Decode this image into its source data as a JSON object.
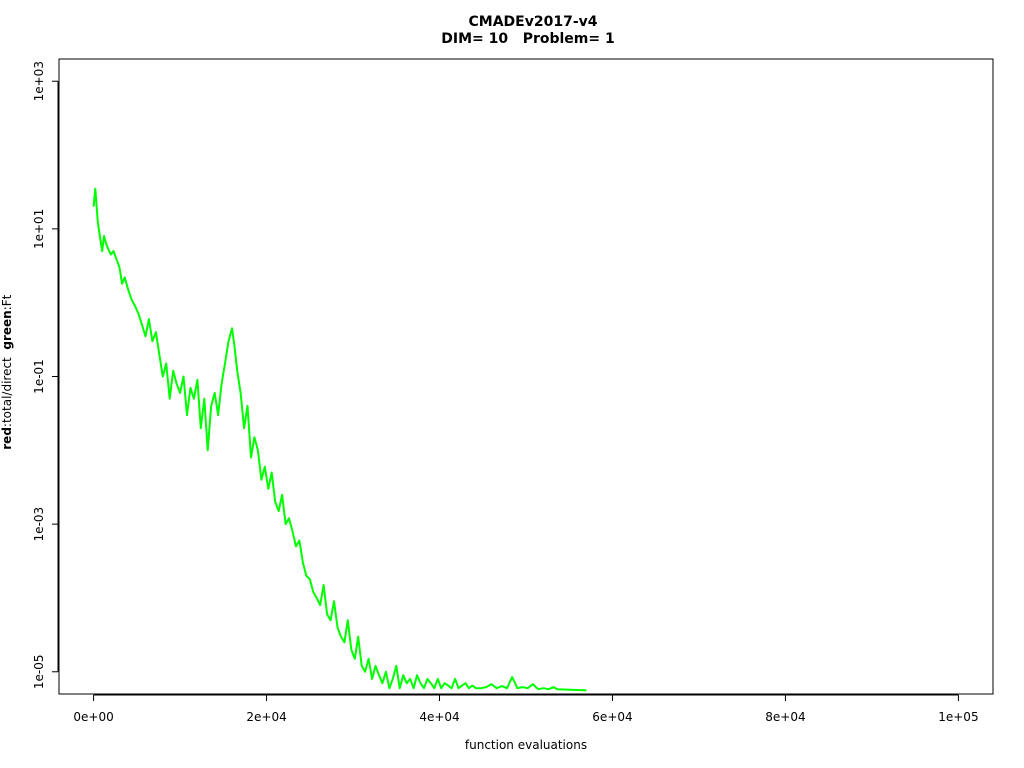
{
  "chart_data": {
    "type": "line",
    "title": "CMADEv2017-v4",
    "subtitle": "DIM= 10   Problem= 1",
    "xlabel": "function evaluations",
    "ylabel_parts": {
      "red_word": "red",
      "red_desc": ":total/direct  ",
      "green_word": "green",
      "green_desc": ":Ft"
    },
    "y_scale": "log",
    "xlim": [
      -4000,
      104000
    ],
    "ylim": [
      5e-06,
      2000.0
    ],
    "x_ticks": [
      {
        "value": 0,
        "label": "0e+00"
      },
      {
        "value": 20000,
        "label": "2e+04"
      },
      {
        "value": 40000,
        "label": "4e+04"
      },
      {
        "value": 60000,
        "label": "6e+04"
      },
      {
        "value": 80000,
        "label": "8e+04"
      },
      {
        "value": 100000,
        "label": "1e+05"
      }
    ],
    "y_ticks": [
      {
        "value": 1000,
        "label": "1e+03"
      },
      {
        "value": 10,
        "label": "1e+01"
      },
      {
        "value": 0.1,
        "label": "1e-01"
      },
      {
        "value": 0.001,
        "label": "1e-03"
      },
      {
        "value": 1e-05,
        "label": "1e-05"
      }
    ],
    "grid": false,
    "legend": "none",
    "series": [
      {
        "color": "#00ff00",
        "x": [
          0,
          200,
          500,
          800,
          1000,
          1200,
          1500,
          1800,
          2000,
          2300,
          2600,
          3000,
          3300,
          3600,
          4000,
          4400,
          4800,
          5200,
          5600,
          6000,
          6400,
          6800,
          7200,
          7600,
          8000,
          8400,
          8800,
          9200,
          9600,
          10000,
          10400,
          10800,
          11200,
          11600,
          12000,
          12400,
          12800,
          13200,
          13600,
          14000,
          14400,
          14800,
          15200,
          15600,
          16000,
          16300,
          16600,
          17000,
          17400,
          17800,
          18200,
          18600,
          19000,
          19400,
          19800,
          20200,
          20600,
          21000,
          21400,
          21800,
          22200,
          22600,
          23000,
          23400,
          23800,
          24200,
          24600,
          25000,
          25400,
          25800,
          26200,
          26600,
          27000,
          27400,
          27800,
          28200,
          28600,
          29000,
          29400,
          29800,
          30200,
          30600,
          31000,
          31400,
          31800,
          32200,
          32600,
          33000,
          33400,
          33800,
          34200,
          34600,
          35000,
          35400,
          35800,
          36200,
          36600,
          37000,
          37400,
          37800,
          38200,
          38600,
          39000,
          39400,
          39800,
          40200,
          40600,
          41000,
          41400,
          41800,
          42200,
          42600,
          43000,
          43400,
          43800,
          44200,
          44800,
          45400,
          46000,
          46600,
          47200,
          47800,
          48400,
          49000,
          49600,
          50200,
          50800,
          51400,
          52000,
          52600,
          53200,
          53600,
          57000
        ],
        "y": [
          20,
          35,
          12,
          7,
          5,
          8,
          6,
          5,
          4.5,
          5,
          4,
          3,
          1.8,
          2.2,
          1.5,
          1.1,
          0.9,
          0.7,
          0.5,
          0.35,
          0.6,
          0.3,
          0.4,
          0.2,
          0.1,
          0.15,
          0.05,
          0.12,
          0.08,
          0.06,
          0.1,
          0.03,
          0.07,
          0.05,
          0.09,
          0.02,
          0.05,
          0.01,
          0.04,
          0.06,
          0.03,
          0.08,
          0.15,
          0.3,
          0.45,
          0.25,
          0.12,
          0.06,
          0.02,
          0.04,
          0.008,
          0.015,
          0.01,
          0.004,
          0.006,
          0.003,
          0.005,
          0.002,
          0.0015,
          0.0025,
          0.001,
          0.0012,
          0.0008,
          0.0005,
          0.0006,
          0.0003,
          0.0002,
          0.00018,
          0.00012,
          0.0001,
          8e-05,
          0.00015,
          6e-05,
          5e-05,
          9e-05,
          4e-05,
          3e-05,
          2.5e-05,
          5e-05,
          2e-05,
          1.5e-05,
          3e-05,
          1.2e-05,
          1e-05,
          1.5e-05,
          8e-06,
          1.2e-05,
          9e-06,
          7e-06,
          1e-05,
          6e-06,
          8e-06,
          1.2e-05,
          6e-06,
          9e-06,
          7e-06,
          8e-06,
          6e-06,
          9e-06,
          7e-06,
          6e-06,
          8e-06,
          7e-06,
          6e-06,
          8e-06,
          6e-06,
          7e-06,
          6.5e-06,
          6e-06,
          8e-06,
          6e-06,
          6.5e-06,
          7e-06,
          6e-06,
          6.5e-06,
          6e-06,
          6e-06,
          6.2e-06,
          6.8e-06,
          6e-06,
          6.4e-06,
          6e-06,
          8.5e-06,
          6e-06,
          6.2e-06,
          6e-06,
          6.8e-06,
          5.8e-06,
          6e-06,
          5.8e-06,
          6.2e-06,
          5.8e-06,
          5.6e-06
        ]
      }
    ]
  }
}
